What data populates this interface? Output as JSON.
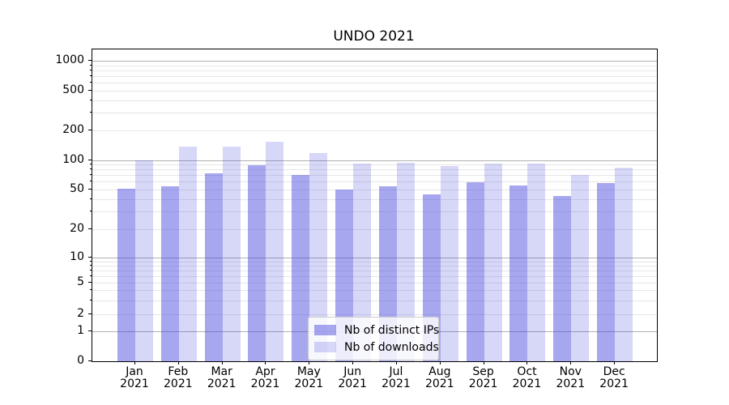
{
  "chart_data": {
    "type": "bar",
    "title": "UNDO 2021",
    "categories": [
      "Jan",
      "Feb",
      "Mar",
      "Apr",
      "May",
      "Jun",
      "Jul",
      "Aug",
      "Sep",
      "Oct",
      "Nov",
      "Dec"
    ],
    "category_year": "2021",
    "series": [
      {
        "name": "Nb of distinct IPs",
        "color": "rgba(68,68,221,0.47)",
        "values": [
          51,
          54,
          73,
          88,
          70,
          50,
          54,
          45,
          59,
          55,
          43,
          58
        ]
      },
      {
        "name": "Nb of downloads",
        "color": "rgba(68,68,221,0.21)",
        "values": [
          100,
          136,
          135,
          153,
          117,
          91,
          93,
          87,
          92,
          91,
          70,
          84
        ]
      }
    ],
    "xlabel": "",
    "ylabel": "",
    "yscale": "symlog",
    "yticks": [
      0,
      1,
      2,
      5,
      10,
      20,
      50,
      100,
      200,
      500,
      1000
    ],
    "ylim": [
      0,
      1300
    ],
    "grid": true,
    "legend_position": "lower center"
  },
  "colors": {
    "major_grid": "#b0b0b0",
    "minor_grid": "#e6e6e6",
    "axis": "#000000",
    "legend_border": "#cccccc"
  }
}
